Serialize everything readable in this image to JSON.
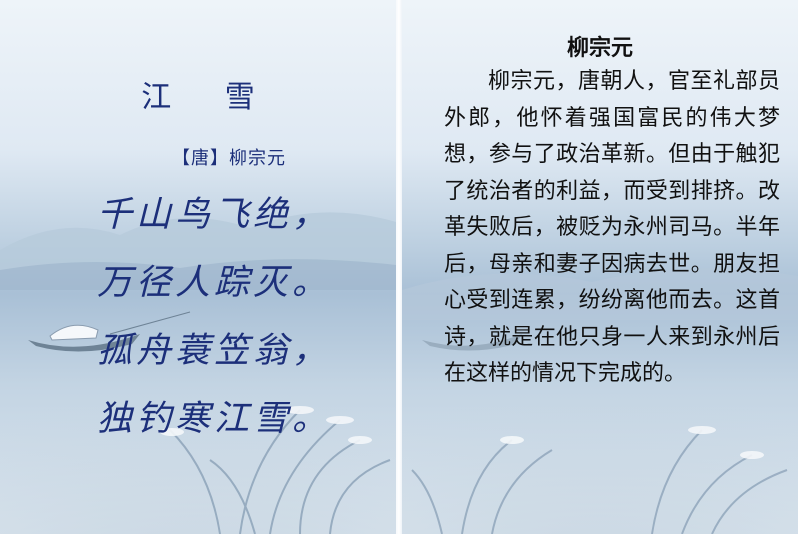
{
  "poem": {
    "title": "江 雪",
    "author": "【唐】柳宗元",
    "lines": [
      "千山鸟飞绝，",
      "万径人踪灭。",
      "孤舟蓑笠翁，",
      "独钓寒江雪。"
    ]
  },
  "biography": {
    "title": "柳宗元",
    "text": "柳宗元，唐朝人，官至礼部员外郎，他怀着强国富民的伟大梦想，参与了政治革新。但由于触犯了统治者的利益，而受到排挤。改革失败后，被贬为永州司马。半年后，母亲和妻子因病去世。朋友担心受到连累，纷纷离他而去。这首诗，就是在他只身一人来到永州后在这样的情况下完成的。"
  },
  "colors": {
    "poem_text": "#1c2f7a",
    "bio_text": "#111111",
    "sky": "#eef4f9",
    "water": "#a9c0d6"
  }
}
